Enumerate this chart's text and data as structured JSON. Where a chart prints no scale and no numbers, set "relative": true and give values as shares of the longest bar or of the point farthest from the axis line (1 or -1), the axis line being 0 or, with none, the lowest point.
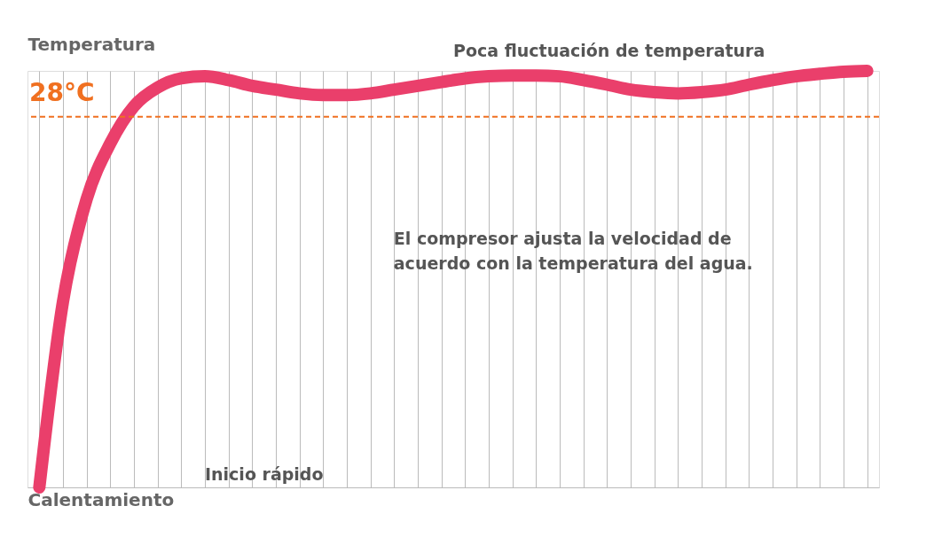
{
  "chart_data": {
    "type": "line",
    "relative": true,
    "xlabel": "Calentamiento",
    "ylabel": "Temperatura",
    "categories": [
      null,
      null,
      null,
      null,
      null,
      null,
      null,
      null,
      null,
      null,
      null,
      null,
      null,
      null,
      null,
      null,
      null,
      null,
      null,
      null,
      null,
      null,
      null,
      null,
      null,
      null,
      null,
      null,
      null,
      null,
      null,
      null,
      null,
      null,
      null,
      null
    ],
    "series": [
      {
        "color": "#ea3f6b",
        "values": [
          0,
          0.446,
          0.692,
          0.826,
          0.915,
          0.96,
          0.982,
          0.987,
          0.978,
          0.964,
          0.955,
          0.946,
          0.942,
          0.942,
          0.946,
          0.955,
          0.964,
          0.973,
          0.982,
          0.987,
          0.989,
          0.989,
          0.987,
          0.978,
          0.967,
          0.955,
          0.949,
          0.946,
          0.949,
          0.955,
          0.967,
          0.978,
          0.987,
          0.993,
          0.998,
          1
        ]
      }
    ],
    "ref_lines": [
      {
        "axis": "y",
        "value": 0.89,
        "label": "28°C",
        "color": "#f07020",
        "line_style": "dashed"
      }
    ],
    "annotations": [
      "Poca fluctuación de temperatura",
      "El compresor ajusta la velocidad de acuerdo con la temperatura del agua.",
      "Inicio rápido"
    ],
    "grid": "x",
    "line_style": "solid",
    "marker": "none"
  }
}
